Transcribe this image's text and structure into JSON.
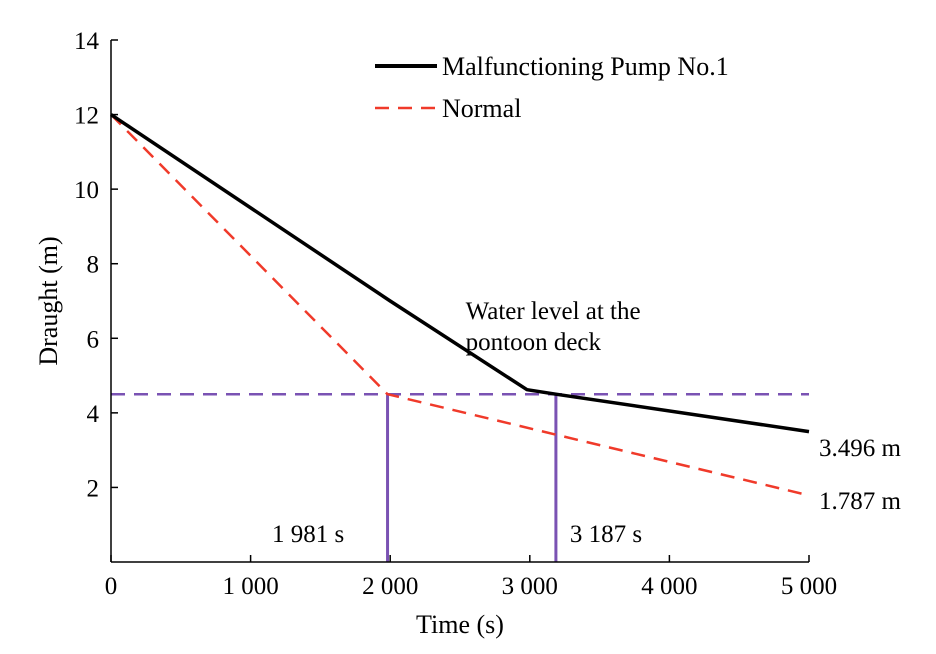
{
  "chart_data": {
    "type": "line",
    "xlabel": "Time (s)",
    "ylabel": "Draught (m)",
    "xlim": [
      0,
      5000
    ],
    "ylim": [
      0,
      14
    ],
    "xticks": [
      0,
      1000,
      2000,
      3000,
      4000,
      5000
    ],
    "xtick_labels": [
      "0",
      "1 000",
      "2 000",
      "3 000",
      "4 000",
      "5 000"
    ],
    "yticks": [
      2,
      4,
      6,
      8,
      10,
      12,
      14
    ],
    "ytick_labels": [
      "2",
      "4",
      "6",
      "8",
      "10",
      "12",
      "14"
    ],
    "legend_position": "top-right",
    "series": [
      {
        "name": "Malfunctioning Pump No.1",
        "color": "#000000",
        "style": "solid",
        "x": [
          0,
          2000,
          2980,
          3187,
          5000
        ],
        "y": [
          12.0,
          7.0,
          4.62,
          4.5,
          3.496
        ]
      },
      {
        "name": "Normal",
        "color": "#f03a2a",
        "style": "dashed",
        "x": [
          0,
          1981,
          5000
        ],
        "y": [
          12.0,
          4.5,
          1.787
        ]
      }
    ],
    "reference_lines": [
      {
        "kind": "horizontal",
        "y": 4.5,
        "color": "#7a52b3",
        "style": "dashed"
      },
      {
        "kind": "vertical",
        "x": 1981,
        "y_top": 4.5,
        "color": "#7a52b3",
        "style": "solid"
      },
      {
        "kind": "vertical",
        "x": 3187,
        "y_top": 4.5,
        "color": "#7a52b3",
        "style": "solid"
      }
    ],
    "annotations": [
      {
        "id": "water-level",
        "lines": [
          "Water level at the",
          "pontoon deck"
        ],
        "x": 3400,
        "y": 6.3
      },
      {
        "id": "t1",
        "text": "1 981 s",
        "x": 1870,
        "y": 0.7
      },
      {
        "id": "t2",
        "text": "3 187 s",
        "x": 3230,
        "y": 0.7
      },
      {
        "id": "end1",
        "text": "3.496 m",
        "x": 5150,
        "y": 3.3
      },
      {
        "id": "end2",
        "text": "1.787 m",
        "x": 5150,
        "y": 1.75
      }
    ]
  }
}
